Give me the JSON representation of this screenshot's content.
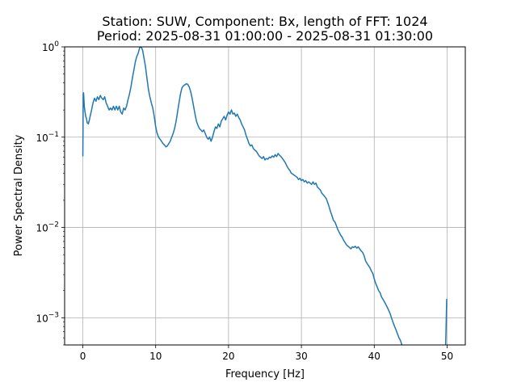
{
  "chart_data": {
    "type": "line",
    "title": "Station: SUW, Component: Bx, length of FFT: 1024",
    "subtitle": "Period: 2025-08-31 01:00:00 - 2025-08-31 01:30:00",
    "xlabel": "Frequency [Hz]",
    "ylabel": "Power Spectral Density",
    "xlim": [
      -2.5,
      52.5
    ],
    "ylim": [
      0.0005,
      1.0
    ],
    "yscale": "log",
    "grid": true,
    "x_ticks": [
      {
        "value": 0,
        "label": "0"
      },
      {
        "value": 10,
        "label": "10"
      },
      {
        "value": 20,
        "label": "20"
      },
      {
        "value": 30,
        "label": "30"
      },
      {
        "value": 40,
        "label": "40"
      },
      {
        "value": 50,
        "label": "50"
      }
    ],
    "y_ticks": [
      {
        "value": 0.001,
        "base": "10",
        "exp": "−3"
      },
      {
        "value": 0.01,
        "base": "10",
        "exp": "−2"
      },
      {
        "value": 0.1,
        "base": "10",
        "exp": "−1"
      },
      {
        "value": 1.0,
        "base": "10",
        "exp": "0"
      }
    ],
    "series": [
      {
        "color": "#1f77b4",
        "points": [
          [
            0.0,
            0.062
          ],
          [
            0.05,
            0.3
          ],
          [
            0.1,
            0.31
          ],
          [
            0.2,
            0.22
          ],
          [
            0.3,
            0.19
          ],
          [
            0.4,
            0.17
          ],
          [
            0.5,
            0.16
          ],
          [
            0.6,
            0.145
          ],
          [
            0.75,
            0.14
          ],
          [
            0.9,
            0.155
          ],
          [
            1.0,
            0.17
          ],
          [
            1.2,
            0.2
          ],
          [
            1.4,
            0.24
          ],
          [
            1.6,
            0.27
          ],
          [
            1.8,
            0.25
          ],
          [
            2.0,
            0.28
          ],
          [
            2.2,
            0.26
          ],
          [
            2.4,
            0.29
          ],
          [
            2.6,
            0.27
          ],
          [
            2.8,
            0.26
          ],
          [
            3.0,
            0.28
          ],
          [
            3.2,
            0.24
          ],
          [
            3.4,
            0.22
          ],
          [
            3.6,
            0.2
          ],
          [
            3.8,
            0.21
          ],
          [
            4.0,
            0.2
          ],
          [
            4.2,
            0.22
          ],
          [
            4.4,
            0.2
          ],
          [
            4.6,
            0.22
          ],
          [
            4.8,
            0.2
          ],
          [
            5.0,
            0.22
          ],
          [
            5.2,
            0.19
          ],
          [
            5.4,
            0.18
          ],
          [
            5.6,
            0.21
          ],
          [
            5.8,
            0.2
          ],
          [
            6.0,
            0.22
          ],
          [
            6.2,
            0.26
          ],
          [
            6.4,
            0.3
          ],
          [
            6.6,
            0.36
          ],
          [
            6.8,
            0.45
          ],
          [
            7.0,
            0.55
          ],
          [
            7.2,
            0.68
          ],
          [
            7.4,
            0.78
          ],
          [
            7.6,
            0.85
          ],
          [
            7.8,
            0.98
          ],
          [
            8.0,
            1.0
          ],
          [
            8.2,
            0.92
          ],
          [
            8.4,
            0.75
          ],
          [
            8.6,
            0.6
          ],
          [
            8.8,
            0.45
          ],
          [
            9.0,
            0.34
          ],
          [
            9.2,
            0.28
          ],
          [
            9.4,
            0.24
          ],
          [
            9.6,
            0.21
          ],
          [
            9.8,
            0.17
          ],
          [
            10.0,
            0.13
          ],
          [
            10.2,
            0.11
          ],
          [
            10.4,
            0.1
          ],
          [
            10.6,
            0.095
          ],
          [
            10.8,
            0.09
          ],
          [
            11.0,
            0.085
          ],
          [
            11.2,
            0.082
          ],
          [
            11.4,
            0.078
          ],
          [
            11.6,
            0.08
          ],
          [
            11.8,
            0.085
          ],
          [
            12.0,
            0.09
          ],
          [
            12.2,
            0.1
          ],
          [
            12.4,
            0.11
          ],
          [
            12.6,
            0.125
          ],
          [
            12.8,
            0.15
          ],
          [
            13.0,
            0.19
          ],
          [
            13.2,
            0.24
          ],
          [
            13.4,
            0.3
          ],
          [
            13.6,
            0.35
          ],
          [
            13.8,
            0.37
          ],
          [
            14.0,
            0.38
          ],
          [
            14.2,
            0.39
          ],
          [
            14.4,
            0.385
          ],
          [
            14.6,
            0.36
          ],
          [
            14.8,
            0.32
          ],
          [
            15.0,
            0.27
          ],
          [
            15.2,
            0.22
          ],
          [
            15.4,
            0.18
          ],
          [
            15.6,
            0.15
          ],
          [
            15.8,
            0.135
          ],
          [
            16.0,
            0.125
          ],
          [
            16.2,
            0.12
          ],
          [
            16.4,
            0.115
          ],
          [
            16.6,
            0.12
          ],
          [
            16.8,
            0.11
          ],
          [
            17.0,
            0.1
          ],
          [
            17.2,
            0.095
          ],
          [
            17.4,
            0.1
          ],
          [
            17.6,
            0.09
          ],
          [
            17.8,
            0.1
          ],
          [
            18.0,
            0.115
          ],
          [
            18.2,
            0.13
          ],
          [
            18.4,
            0.125
          ],
          [
            18.6,
            0.14
          ],
          [
            18.8,
            0.13
          ],
          [
            19.0,
            0.15
          ],
          [
            19.2,
            0.16
          ],
          [
            19.4,
            0.17
          ],
          [
            19.6,
            0.155
          ],
          [
            19.8,
            0.175
          ],
          [
            20.0,
            0.19
          ],
          [
            20.2,
            0.18
          ],
          [
            20.4,
            0.2
          ],
          [
            20.6,
            0.18
          ],
          [
            20.8,
            0.185
          ],
          [
            21.0,
            0.17
          ],
          [
            21.2,
            0.18
          ],
          [
            21.4,
            0.165
          ],
          [
            21.6,
            0.155
          ],
          [
            21.8,
            0.14
          ],
          [
            22.0,
            0.13
          ],
          [
            22.2,
            0.12
          ],
          [
            22.4,
            0.105
          ],
          [
            22.6,
            0.095
          ],
          [
            22.8,
            0.085
          ],
          [
            23.0,
            0.08
          ],
          [
            23.2,
            0.082
          ],
          [
            23.4,
            0.075
          ],
          [
            23.6,
            0.072
          ],
          [
            23.8,
            0.07
          ],
          [
            24.0,
            0.066
          ],
          [
            24.2,
            0.062
          ],
          [
            24.4,
            0.06
          ],
          [
            24.6,
            0.058
          ],
          [
            24.8,
            0.061
          ],
          [
            25.0,
            0.056
          ],
          [
            25.2,
            0.058
          ],
          [
            25.4,
            0.057
          ],
          [
            25.6,
            0.06
          ],
          [
            25.8,
            0.059
          ],
          [
            26.0,
            0.062
          ],
          [
            26.2,
            0.06
          ],
          [
            26.4,
            0.064
          ],
          [
            26.6,
            0.061
          ],
          [
            26.8,
            0.066
          ],
          [
            27.0,
            0.063
          ],
          [
            27.2,
            0.061
          ],
          [
            27.4,
            0.058
          ],
          [
            27.6,
            0.055
          ],
          [
            27.8,
            0.052
          ],
          [
            28.0,
            0.048
          ],
          [
            28.2,
            0.045
          ],
          [
            28.4,
            0.043
          ],
          [
            28.6,
            0.04
          ],
          [
            28.8,
            0.039
          ],
          [
            29.0,
            0.038
          ],
          [
            29.2,
            0.037
          ],
          [
            29.4,
            0.036
          ],
          [
            29.6,
            0.034
          ],
          [
            29.8,
            0.035
          ],
          [
            30.0,
            0.033
          ],
          [
            30.2,
            0.034
          ],
          [
            30.4,
            0.032
          ],
          [
            30.6,
            0.033
          ],
          [
            30.8,
            0.031
          ],
          [
            31.0,
            0.032
          ],
          [
            31.2,
            0.031
          ],
          [
            31.4,
            0.03
          ],
          [
            31.6,
            0.032
          ],
          [
            31.8,
            0.03
          ],
          [
            32.0,
            0.031
          ],
          [
            32.2,
            0.028
          ],
          [
            32.4,
            0.027
          ],
          [
            32.6,
            0.026
          ],
          [
            32.8,
            0.024
          ],
          [
            33.0,
            0.023
          ],
          [
            33.2,
            0.022
          ],
          [
            33.4,
            0.021
          ],
          [
            33.6,
            0.019
          ],
          [
            33.8,
            0.017
          ],
          [
            34.0,
            0.015
          ],
          [
            34.2,
            0.0135
          ],
          [
            34.4,
            0.012
          ],
          [
            34.6,
            0.0115
          ],
          [
            34.8,
            0.0105
          ],
          [
            35.0,
            0.0095
          ],
          [
            35.2,
            0.0088
          ],
          [
            35.4,
            0.0082
          ],
          [
            35.6,
            0.0078
          ],
          [
            35.8,
            0.0072
          ],
          [
            36.0,
            0.0068
          ],
          [
            36.2,
            0.0064
          ],
          [
            36.4,
            0.0062
          ],
          [
            36.6,
            0.006
          ],
          [
            36.8,
            0.0058
          ],
          [
            37.0,
            0.0061
          ],
          [
            37.2,
            0.006
          ],
          [
            37.4,
            0.0062
          ],
          [
            37.6,
            0.0059
          ],
          [
            37.8,
            0.0061
          ],
          [
            38.0,
            0.0058
          ],
          [
            38.2,
            0.0055
          ],
          [
            38.4,
            0.0053
          ],
          [
            38.6,
            0.0049
          ],
          [
            38.8,
            0.0043
          ],
          [
            39.0,
            0.004
          ],
          [
            39.2,
            0.0038
          ],
          [
            39.4,
            0.0036
          ],
          [
            39.6,
            0.0033
          ],
          [
            39.8,
            0.0031
          ],
          [
            40.0,
            0.0027
          ],
          [
            40.2,
            0.0024
          ],
          [
            40.4,
            0.0022
          ],
          [
            40.6,
            0.002
          ],
          [
            40.8,
            0.0019
          ],
          [
            41.0,
            0.0017
          ],
          [
            41.2,
            0.0016
          ],
          [
            41.4,
            0.0015
          ],
          [
            41.6,
            0.0014
          ],
          [
            41.8,
            0.0013
          ],
          [
            42.0,
            0.0012
          ],
          [
            42.2,
            0.0011
          ],
          [
            42.4,
            0.00098
          ],
          [
            42.6,
            0.00088
          ],
          [
            42.8,
            0.0008
          ],
          [
            43.0,
            0.00073
          ],
          [
            43.2,
            0.00066
          ],
          [
            43.4,
            0.0006
          ],
          [
            43.6,
            0.00056
          ],
          [
            43.8,
            0.0005
          ]
        ]
      },
      {
        "color": "#1f77b4",
        "points": [
          [
            49.8,
            0.0005
          ],
          [
            49.85,
            0.0007
          ],
          [
            49.9,
            0.0011
          ],
          [
            49.95,
            0.0016
          ]
        ]
      }
    ]
  }
}
